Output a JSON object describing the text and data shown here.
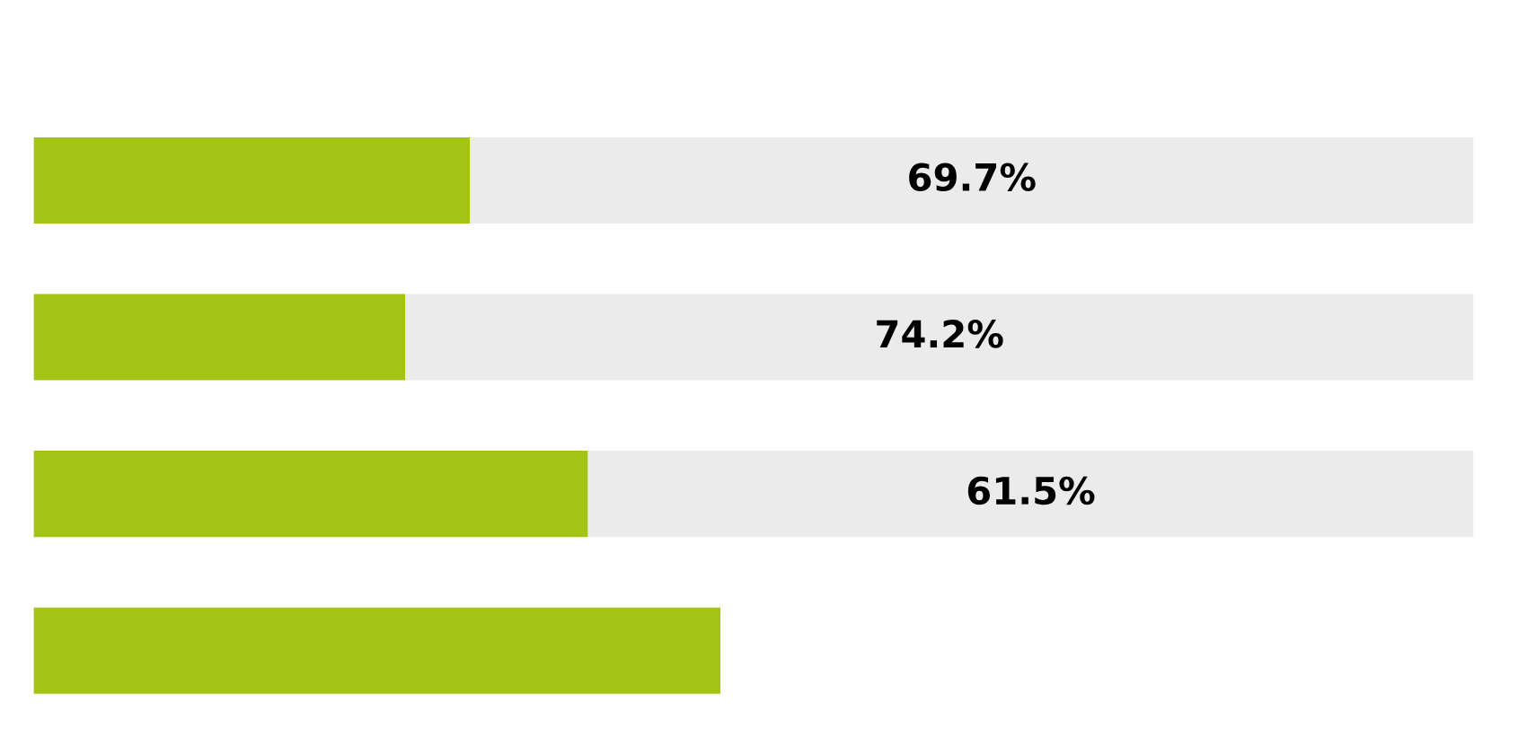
{
  "chart_data": {
    "type": "bar",
    "orientation": "horizontal",
    "stacked": true,
    "categories": [
      null,
      null,
      null,
      null
    ],
    "series": [
      {
        "color": "#a3c416",
        "values": [
          30.3,
          25.8,
          38.5,
          47.7
        ]
      },
      {
        "color": "#ebebeb",
        "values": [
          69.7,
          74.2,
          61.5,
          null
        ],
        "value_labels": [
          "69.7%",
          "74.2%",
          "61.5%",
          null
        ]
      }
    ],
    "xlim": [
      0,
      100
    ],
    "grid": false,
    "legend": false
  }
}
